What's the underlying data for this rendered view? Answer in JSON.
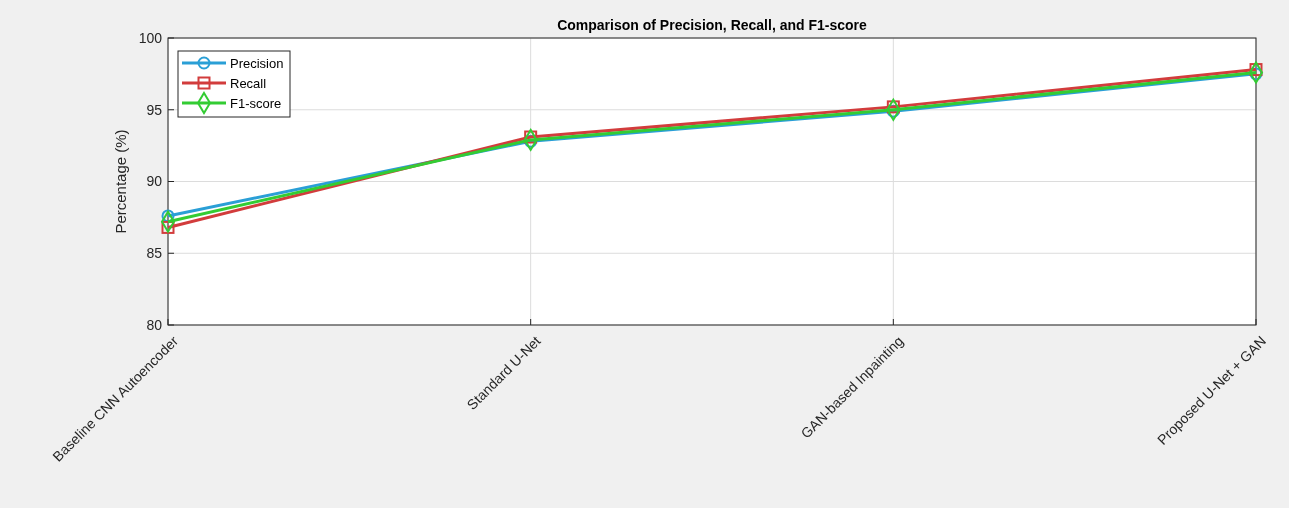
{
  "chart_data": {
    "type": "line",
    "title": "Comparison of Precision, Recall, and F1-score",
    "ylabel": "Percentage (%)",
    "categories": [
      "Baseline CNN Autoencoder",
      "Standard U-Net",
      "GAN-based Inpainting",
      "Proposed U-Net + GAN"
    ],
    "series": [
      {
        "name": "Precision",
        "color": "#2a9fd6",
        "marker": "circle",
        "values": [
          87.6,
          92.8,
          94.9,
          97.5
        ]
      },
      {
        "name": "Recall",
        "color": "#d23c3c",
        "marker": "square",
        "values": [
          86.8,
          93.1,
          95.2,
          97.8
        ]
      },
      {
        "name": "F1-score",
        "color": "#33cc33",
        "marker": "diamond",
        "values": [
          87.2,
          92.9,
          95.0,
          97.6
        ]
      }
    ],
    "ylim": [
      80,
      100
    ],
    "yticks": [
      80,
      85,
      90,
      95,
      100
    ],
    "grid": true,
    "legend": "top left",
    "line_style": "solid"
  }
}
